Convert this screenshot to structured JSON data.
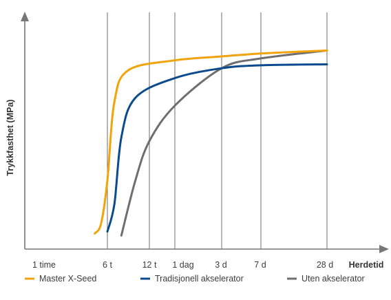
{
  "chart_data": {
    "type": "line",
    "xlabel": "Herdetid",
    "ylabel": "Trykkfasthet (MPa)",
    "x_ticks": [
      "1 time",
      "6 t",
      "12 t",
      "1 dag",
      "3 d",
      "7 d",
      "28 d"
    ],
    "y_ticks": [],
    "grid": "vertical",
    "legend_position": "bottom",
    "series": [
      {
        "name": "Master X-Seed",
        "color": "#f0a30a",
        "points": [
          {
            "x": "5 t",
            "y": 3
          },
          {
            "x": "5.5 t",
            "y": 8
          },
          {
            "x": "6 t",
            "y": 30
          },
          {
            "x": "7 t",
            "y": 70
          },
          {
            "x": "9 t",
            "y": 86
          },
          {
            "x": "1 dag",
            "y": 91
          },
          {
            "x": "3 d",
            "y": 93
          },
          {
            "x": "7 d",
            "y": 94.5
          },
          {
            "x": "28 d",
            "y": 96
          }
        ]
      },
      {
        "name": "Tradisjonell akselerator",
        "color": "#0b4a8f",
        "points": [
          {
            "x": "6 t",
            "y": 4
          },
          {
            "x": "7 t",
            "y": 18
          },
          {
            "x": "8 t",
            "y": 52
          },
          {
            "x": "10 t",
            "y": 72
          },
          {
            "x": "1 dag",
            "y": 82
          },
          {
            "x": "3 d",
            "y": 87
          },
          {
            "x": "7 d",
            "y": 88.5
          },
          {
            "x": "28 d",
            "y": 89
          }
        ]
      },
      {
        "name": "Uten akselerator",
        "color": "#6e6e6e",
        "points": [
          {
            "x": "8 t",
            "y": 2
          },
          {
            "x": "10 t",
            "y": 30
          },
          {
            "x": "12 t",
            "y": 50
          },
          {
            "x": "1 dag",
            "y": 68
          },
          {
            "x": "3 d",
            "y": 87
          },
          {
            "x": "7 d",
            "y": 92
          },
          {
            "x": "28 d",
            "y": 96
          }
        ]
      }
    ]
  }
}
